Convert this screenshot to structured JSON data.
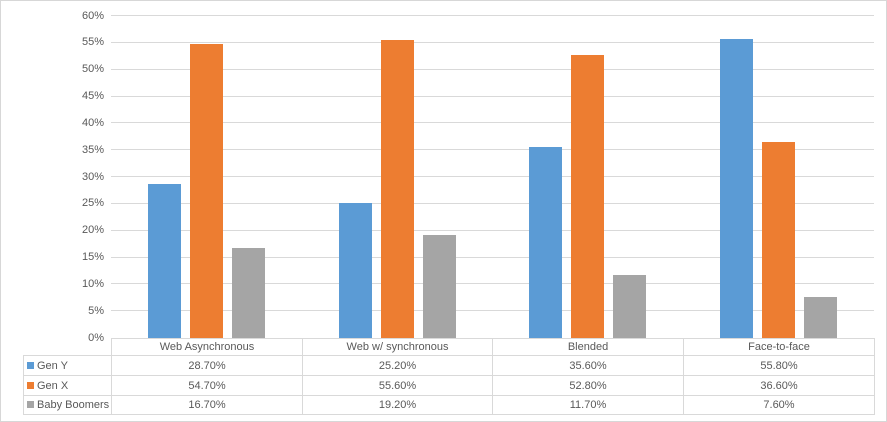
{
  "chart_data": {
    "type": "bar",
    "title": "",
    "categories": [
      "Web Asynchronous",
      "Web w/ synchronous",
      "Blended",
      "Face-to-face"
    ],
    "series": [
      {
        "name": "Gen Y",
        "color": "#5B9BD5",
        "values": [
          28.7,
          25.2,
          35.6,
          55.8
        ],
        "labels": [
          "28.70%",
          "25.20%",
          "35.60%",
          "55.80%"
        ]
      },
      {
        "name": "Gen X",
        "color": "#ED7D31",
        "values": [
          54.7,
          55.6,
          52.8,
          36.6
        ],
        "labels": [
          "54.70%",
          "55.60%",
          "52.80%",
          "36.60%"
        ]
      },
      {
        "name": "Baby Boomers",
        "color": "#A5A5A5",
        "values": [
          16.7,
          19.2,
          11.7,
          7.6
        ],
        "labels": [
          "16.70%",
          "19.20%",
          "11.70%",
          "7.60%"
        ]
      }
    ],
    "y_axis": {
      "min": 0,
      "max": 60,
      "step": 5,
      "tick_labels": [
        "0%",
        "5%",
        "10%",
        "15%",
        "20%",
        "25%",
        "30%",
        "35%",
        "40%",
        "45%",
        "50%",
        "55%",
        "60%"
      ]
    },
    "grid": true,
    "legend_position": "data-table-left",
    "plot_colors": {
      "gridline": "#d9d9d9",
      "table_border": "#d9d9d9",
      "text": "#595959",
      "background": "#ffffff"
    }
  }
}
